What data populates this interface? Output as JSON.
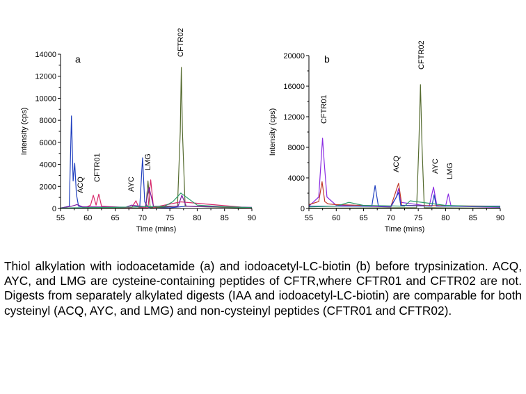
{
  "caption": "Thiol alkylation with iodoacetamide (a) and iodoacetyl-LC-biotin (b) before trypsinization. ACQ, AYC, and LMG are cysteine-containing peptides of CFTR,where CFTR01 and CFTR02 are not. Digests from separately alkylated digests (IAA and iodoacetyl-LC-biotin) are comparable for both cysteinyl (ACQ, AYC, and LMG) and non-cysteinyl peptides (CFTR01 and CFTR02).",
  "chart_data": [
    {
      "type": "line",
      "panel_label": "a",
      "xlabel": "Time (mins)",
      "ylabel": "Intensity (cps)",
      "xlim": [
        55,
        90
      ],
      "ylim": [
        0,
        14000
      ],
      "xticks": [
        55,
        60,
        65,
        70,
        75,
        80,
        85,
        90
      ],
      "yticks": [
        0,
        2000,
        4000,
        6000,
        8000,
        10000,
        12000,
        14000
      ],
      "series": [
        {
          "color": "#1f3fbf",
          "x": [
            55,
            56.6,
            57.0,
            57.3,
            57.6,
            57.9,
            58.3,
            60,
            63,
            67,
            69.5,
            70.0,
            70.4,
            71,
            75,
            78,
            90
          ],
          "y": [
            30,
            200,
            8400,
            2500,
            4100,
            1300,
            200,
            60,
            40,
            60,
            200,
            4600,
            600,
            100,
            60,
            200,
            50
          ]
        },
        {
          "color": "#556b2f",
          "x": [
            55,
            70.6,
            71.0,
            71.4,
            76.4,
            76.9,
            77.1,
            77.3,
            77.8,
            90
          ],
          "y": [
            20,
            40,
            2500,
            60,
            200,
            7000,
            12800,
            7000,
            200,
            30
          ]
        },
        {
          "color": "#d8286a",
          "x": [
            55,
            59.5,
            60.5,
            61.0,
            61.5,
            62.0,
            62.5,
            68,
            68.8,
            69.3,
            71,
            71.5,
            72.0,
            77,
            90
          ],
          "y": [
            30,
            60,
            300,
            1200,
            300,
            1300,
            200,
            60,
            700,
            100,
            60,
            2600,
            100,
            600,
            40
          ]
        },
        {
          "color": "#7a1aa0",
          "x": [
            55,
            57,
            58,
            59,
            67,
            68,
            70.5,
            71.2,
            72,
            76.5,
            77.2,
            78,
            90
          ],
          "y": [
            50,
            200,
            350,
            150,
            120,
            300,
            150,
            1900,
            200,
            200,
            1200,
            200,
            100
          ]
        },
        {
          "color": "#2a9a6a",
          "x": [
            55,
            60,
            65,
            70,
            74,
            75.5,
            77,
            80,
            85,
            90
          ],
          "y": [
            40,
            80,
            100,
            150,
            200,
            600,
            1400,
            300,
            150,
            80
          ]
        }
      ],
      "peak_labels": [
        "ACQ",
        "CFTR01",
        "AYC",
        "LMG",
        "CFTR02"
      ]
    },
    {
      "type": "line",
      "panel_label": "b",
      "xlabel": "Time (mins)",
      "ylabel": "Intensity (cps)",
      "xlim": [
        55,
        90
      ],
      "ylim": [
        0,
        20000
      ],
      "xticks": [
        55,
        60,
        65,
        70,
        75,
        80,
        85,
        90
      ],
      "yticks": [
        0,
        4000,
        8000,
        12000,
        16000,
        20000
      ],
      "series": [
        {
          "color": "#556b2f",
          "x": [
            55,
            74.7,
            75.1,
            75.4,
            75.7,
            76.1,
            90
          ],
          "y": [
            40,
            100,
            8000,
            16200,
            8000,
            100,
            40
          ]
        },
        {
          "color": "#8a2be2",
          "x": [
            55,
            56.8,
            57.2,
            57.5,
            57.8,
            58.3,
            60,
            70,
            71.0,
            71.4,
            71.8,
            77,
            77.8,
            78.4,
            80.0,
            80.5,
            81.0,
            90
          ],
          "y": [
            300,
            1500,
            6000,
            9200,
            6000,
            1500,
            400,
            200,
            1500,
            2600,
            800,
            300,
            2800,
            400,
            300,
            1900,
            300,
            150
          ]
        },
        {
          "color": "#c0392b",
          "x": [
            55,
            56.8,
            57.4,
            57.9,
            58.5,
            60,
            70,
            71.4,
            72,
            90
          ],
          "y": [
            500,
            900,
            3500,
            900,
            600,
            500,
            300,
            3300,
            400,
            300
          ]
        },
        {
          "color": "#1f3fbf",
          "x": [
            55,
            60,
            66.5,
            67.1,
            67.7,
            70,
            71.0,
            71.4,
            71.8,
            77.5,
            77.9,
            78.3,
            90
          ],
          "y": [
            300,
            300,
            300,
            3000,
            300,
            300,
            1500,
            2100,
            400,
            300,
            1800,
            300,
            300
          ]
        },
        {
          "color": "#2a9a6a",
          "x": [
            55,
            60,
            62.3,
            65,
            72.5,
            73.5,
            80,
            85,
            90
          ],
          "y": [
            200,
            300,
            800,
            400,
            300,
            1000,
            400,
            300,
            200
          ]
        }
      ],
      "peak_labels": [
        "CFTR01",
        "ACQ",
        "CFTR02",
        "AYC",
        "LMG"
      ]
    }
  ]
}
